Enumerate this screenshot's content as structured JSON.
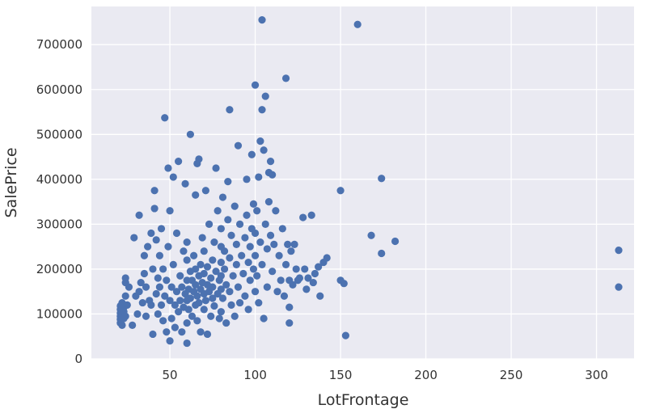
{
  "chart_data": {
    "type": "scatter",
    "xlabel": "LotFrontage",
    "ylabel": "SalePrice",
    "xlim": [
      4,
      322
    ],
    "ylim": [
      0,
      785000
    ],
    "xticks": [
      50,
      100,
      150,
      200,
      250,
      300
    ],
    "yticks": [
      0,
      100000,
      200000,
      300000,
      400000,
      500000,
      600000,
      700000
    ],
    "grid": true,
    "background_color": "#eaeaf2",
    "grid_color": "#ffffff",
    "point_color": "#4c72b0",
    "points": [
      {
        "x": 21,
        "y": 80000
      },
      {
        "x": 21,
        "y": 88000
      },
      {
        "x": 21,
        "y": 95000
      },
      {
        "x": 21,
        "y": 102000
      },
      {
        "x": 21,
        "y": 110000
      },
      {
        "x": 21,
        "y": 118000
      },
      {
        "x": 22,
        "y": 75000
      },
      {
        "x": 22,
        "y": 98000
      },
      {
        "x": 22,
        "y": 125000
      },
      {
        "x": 23,
        "y": 90000
      },
      {
        "x": 23,
        "y": 105000
      },
      {
        "x": 23,
        "y": 115000
      },
      {
        "x": 24,
        "y": 95000
      },
      {
        "x": 24,
        "y": 140000
      },
      {
        "x": 24,
        "y": 170000
      },
      {
        "x": 24,
        "y": 180000
      },
      {
        "x": 25,
        "y": 120000
      },
      {
        "x": 26,
        "y": 160000
      },
      {
        "x": 28,
        "y": 75000
      },
      {
        "x": 29,
        "y": 270000
      },
      {
        "x": 30,
        "y": 140000
      },
      {
        "x": 31,
        "y": 100000
      },
      {
        "x": 32,
        "y": 150000
      },
      {
        "x": 32,
        "y": 320000
      },
      {
        "x": 33,
        "y": 170000
      },
      {
        "x": 34,
        "y": 125000
      },
      {
        "x": 35,
        "y": 230000
      },
      {
        "x": 35,
        "y": 190000
      },
      {
        "x": 36,
        "y": 160000
      },
      {
        "x": 36,
        "y": 95000
      },
      {
        "x": 37,
        "y": 250000
      },
      {
        "x": 38,
        "y": 130000
      },
      {
        "x": 39,
        "y": 120000
      },
      {
        "x": 39,
        "y": 280000
      },
      {
        "x": 40,
        "y": 55000
      },
      {
        "x": 40,
        "y": 200000
      },
      {
        "x": 41,
        "y": 375000
      },
      {
        "x": 41,
        "y": 335000
      },
      {
        "x": 42,
        "y": 145000
      },
      {
        "x": 42,
        "y": 265000
      },
      {
        "x": 43,
        "y": 100000
      },
      {
        "x": 43,
        "y": 180000
      },
      {
        "x": 44,
        "y": 160000
      },
      {
        "x": 44,
        "y": 230000
      },
      {
        "x": 45,
        "y": 120000
      },
      {
        "x": 45,
        "y": 290000
      },
      {
        "x": 46,
        "y": 85000
      },
      {
        "x": 46,
        "y": 200000
      },
      {
        "x": 47,
        "y": 537000
      },
      {
        "x": 47,
        "y": 140000
      },
      {
        "x": 48,
        "y": 175000
      },
      {
        "x": 48,
        "y": 60000
      },
      {
        "x": 49,
        "y": 425000
      },
      {
        "x": 49,
        "y": 250000
      },
      {
        "x": 50,
        "y": 40000
      },
      {
        "x": 50,
        "y": 130000
      },
      {
        "x": 50,
        "y": 330000
      },
      {
        "x": 51,
        "y": 160000
      },
      {
        "x": 51,
        "y": 90000
      },
      {
        "x": 52,
        "y": 405000
      },
      {
        "x": 52,
        "y": 210000
      },
      {
        "x": 53,
        "y": 120000
      },
      {
        "x": 53,
        "y": 70000
      },
      {
        "x": 54,
        "y": 150000
      },
      {
        "x": 54,
        "y": 280000
      },
      {
        "x": 55,
        "y": 440000
      },
      {
        "x": 55,
        "y": 105000
      },
      {
        "x": 56,
        "y": 185000
      },
      {
        "x": 56,
        "y": 130000
      },
      {
        "x": 57,
        "y": 60000
      },
      {
        "x": 57,
        "y": 160000
      },
      {
        "x": 58,
        "y": 240000
      },
      {
        "x": 58,
        "y": 115000
      },
      {
        "x": 59,
        "y": 145000
      },
      {
        "x": 59,
        "y": 390000
      },
      {
        "x": 60,
        "y": 35000
      },
      {
        "x": 60,
        "y": 80000
      },
      {
        "x": 60,
        "y": 130000
      },
      {
        "x": 60,
        "y": 175000
      },
      {
        "x": 60,
        "y": 220000
      },
      {
        "x": 60,
        "y": 260000
      },
      {
        "x": 61,
        "y": 110000
      },
      {
        "x": 61,
        "y": 155000
      },
      {
        "x": 62,
        "y": 500000
      },
      {
        "x": 62,
        "y": 195000
      },
      {
        "x": 62,
        "y": 135000
      },
      {
        "x": 63,
        "y": 95000
      },
      {
        "x": 63,
        "y": 175000
      },
      {
        "x": 64,
        "y": 150000
      },
      {
        "x": 64,
        "y": 230000
      },
      {
        "x": 65,
        "y": 365000
      },
      {
        "x": 65,
        "y": 120000
      },
      {
        "x": 65,
        "y": 165000
      },
      {
        "x": 65,
        "y": 200000
      },
      {
        "x": 66,
        "y": 435000
      },
      {
        "x": 66,
        "y": 85000
      },
      {
        "x": 66,
        "y": 140000
      },
      {
        "x": 67,
        "y": 445000
      },
      {
        "x": 67,
        "y": 185000
      },
      {
        "x": 67,
        "y": 125000
      },
      {
        "x": 68,
        "y": 60000
      },
      {
        "x": 68,
        "y": 155000
      },
      {
        "x": 68,
        "y": 210000
      },
      {
        "x": 69,
        "y": 270000
      },
      {
        "x": 69,
        "y": 170000
      },
      {
        "x": 70,
        "y": 110000
      },
      {
        "x": 70,
        "y": 145000
      },
      {
        "x": 70,
        "y": 190000
      },
      {
        "x": 70,
        "y": 240000
      },
      {
        "x": 71,
        "y": 130000
      },
      {
        "x": 71,
        "y": 375000
      },
      {
        "x": 72,
        "y": 55000
      },
      {
        "x": 72,
        "y": 165000
      },
      {
        "x": 72,
        "y": 205000
      },
      {
        "x": 73,
        "y": 150000
      },
      {
        "x": 73,
        "y": 300000
      },
      {
        "x": 74,
        "y": 95000
      },
      {
        "x": 74,
        "y": 180000
      },
      {
        "x": 75,
        "y": 135000
      },
      {
        "x": 75,
        "y": 220000
      },
      {
        "x": 75,
        "y": 160000
      },
      {
        "x": 76,
        "y": 260000
      },
      {
        "x": 76,
        "y": 118000
      },
      {
        "x": 77,
        "y": 425000
      },
      {
        "x": 77,
        "y": 195000
      },
      {
        "x": 78,
        "y": 145000
      },
      {
        "x": 78,
        "y": 330000
      },
      {
        "x": 79,
        "y": 175000
      },
      {
        "x": 79,
        "y": 90000
      },
      {
        "x": 80,
        "y": 105000
      },
      {
        "x": 80,
        "y": 155000
      },
      {
        "x": 80,
        "y": 185000
      },
      {
        "x": 80,
        "y": 215000
      },
      {
        "x": 80,
        "y": 250000
      },
      {
        "x": 80,
        "y": 290000
      },
      {
        "x": 81,
        "y": 360000
      },
      {
        "x": 81,
        "y": 135000
      },
      {
        "x": 82,
        "y": 200000
      },
      {
        "x": 82,
        "y": 240000
      },
      {
        "x": 83,
        "y": 165000
      },
      {
        "x": 83,
        "y": 80000
      },
      {
        "x": 84,
        "y": 310000
      },
      {
        "x": 84,
        "y": 395000
      },
      {
        "x": 85,
        "y": 555000
      },
      {
        "x": 85,
        "y": 150000
      },
      {
        "x": 85,
        "y": 225000
      },
      {
        "x": 86,
        "y": 275000
      },
      {
        "x": 86,
        "y": 120000
      },
      {
        "x": 87,
        "y": 185000
      },
      {
        "x": 88,
        "y": 340000
      },
      {
        "x": 88,
        "y": 95000
      },
      {
        "x": 89,
        "y": 210000
      },
      {
        "x": 89,
        "y": 255000
      },
      {
        "x": 90,
        "y": 475000
      },
      {
        "x": 90,
        "y": 160000
      },
      {
        "x": 91,
        "y": 300000
      },
      {
        "x": 91,
        "y": 125000
      },
      {
        "x": 92,
        "y": 230000
      },
      {
        "x": 93,
        "y": 190000
      },
      {
        "x": 94,
        "y": 270000
      },
      {
        "x": 94,
        "y": 140000
      },
      {
        "x": 95,
        "y": 320000
      },
      {
        "x": 95,
        "y": 400000
      },
      {
        "x": 96,
        "y": 215000
      },
      {
        "x": 96,
        "y": 110000
      },
      {
        "x": 97,
        "y": 250000
      },
      {
        "x": 97,
        "y": 175000
      },
      {
        "x": 98,
        "y": 455000
      },
      {
        "x": 98,
        "y": 290000
      },
      {
        "x": 99,
        "y": 200000
      },
      {
        "x": 99,
        "y": 345000
      },
      {
        "x": 100,
        "y": 610000
      },
      {
        "x": 100,
        "y": 150000
      },
      {
        "x": 100,
        "y": 230000
      },
      {
        "x": 100,
        "y": 280000
      },
      {
        "x": 101,
        "y": 330000
      },
      {
        "x": 101,
        "y": 185000
      },
      {
        "x": 102,
        "y": 405000
      },
      {
        "x": 102,
        "y": 125000
      },
      {
        "x": 103,
        "y": 485000
      },
      {
        "x": 103,
        "y": 260000
      },
      {
        "x": 104,
        "y": 755000
      },
      {
        "x": 104,
        "y": 555000
      },
      {
        "x": 104,
        "y": 210000
      },
      {
        "x": 105,
        "y": 465000
      },
      {
        "x": 105,
        "y": 90000
      },
      {
        "x": 106,
        "y": 585000
      },
      {
        "x": 106,
        "y": 300000
      },
      {
        "x": 107,
        "y": 245000
      },
      {
        "x": 107,
        "y": 160000
      },
      {
        "x": 108,
        "y": 415000
      },
      {
        "x": 108,
        "y": 350000
      },
      {
        "x": 109,
        "y": 440000
      },
      {
        "x": 109,
        "y": 275000
      },
      {
        "x": 110,
        "y": 410000
      },
      {
        "x": 110,
        "y": 195000
      },
      {
        "x": 111,
        "y": 255000
      },
      {
        "x": 112,
        "y": 330000
      },
      {
        "x": 113,
        "y": 150000
      },
      {
        "x": 114,
        "y": 230000
      },
      {
        "x": 115,
        "y": 175000
      },
      {
        "x": 116,
        "y": 290000
      },
      {
        "x": 117,
        "y": 140000
      },
      {
        "x": 118,
        "y": 625000
      },
      {
        "x": 118,
        "y": 210000
      },
      {
        "x": 119,
        "y": 255000
      },
      {
        "x": 120,
        "y": 80000
      },
      {
        "x": 120,
        "y": 115000
      },
      {
        "x": 120,
        "y": 175000
      },
      {
        "x": 121,
        "y": 240000
      },
      {
        "x": 122,
        "y": 165000
      },
      {
        "x": 123,
        "y": 255000
      },
      {
        "x": 124,
        "y": 200000
      },
      {
        "x": 125,
        "y": 175000
      },
      {
        "x": 126,
        "y": 180000
      },
      {
        "x": 128,
        "y": 315000
      },
      {
        "x": 129,
        "y": 200000
      },
      {
        "x": 130,
        "y": 155000
      },
      {
        "x": 131,
        "y": 180000
      },
      {
        "x": 133,
        "y": 320000
      },
      {
        "x": 134,
        "y": 170000
      },
      {
        "x": 135,
        "y": 190000
      },
      {
        "x": 137,
        "y": 205000
      },
      {
        "x": 138,
        "y": 140000
      },
      {
        "x": 140,
        "y": 215000
      },
      {
        "x": 142,
        "y": 225000
      },
      {
        "x": 150,
        "y": 375000
      },
      {
        "x": 150,
        "y": 175000
      },
      {
        "x": 152,
        "y": 168000
      },
      {
        "x": 153,
        "y": 52000
      },
      {
        "x": 160,
        "y": 745000
      },
      {
        "x": 168,
        "y": 275000
      },
      {
        "x": 174,
        "y": 402000
      },
      {
        "x": 174,
        "y": 235000
      },
      {
        "x": 182,
        "y": 262000
      },
      {
        "x": 313,
        "y": 242000
      },
      {
        "x": 313,
        "y": 160000
      }
    ]
  }
}
